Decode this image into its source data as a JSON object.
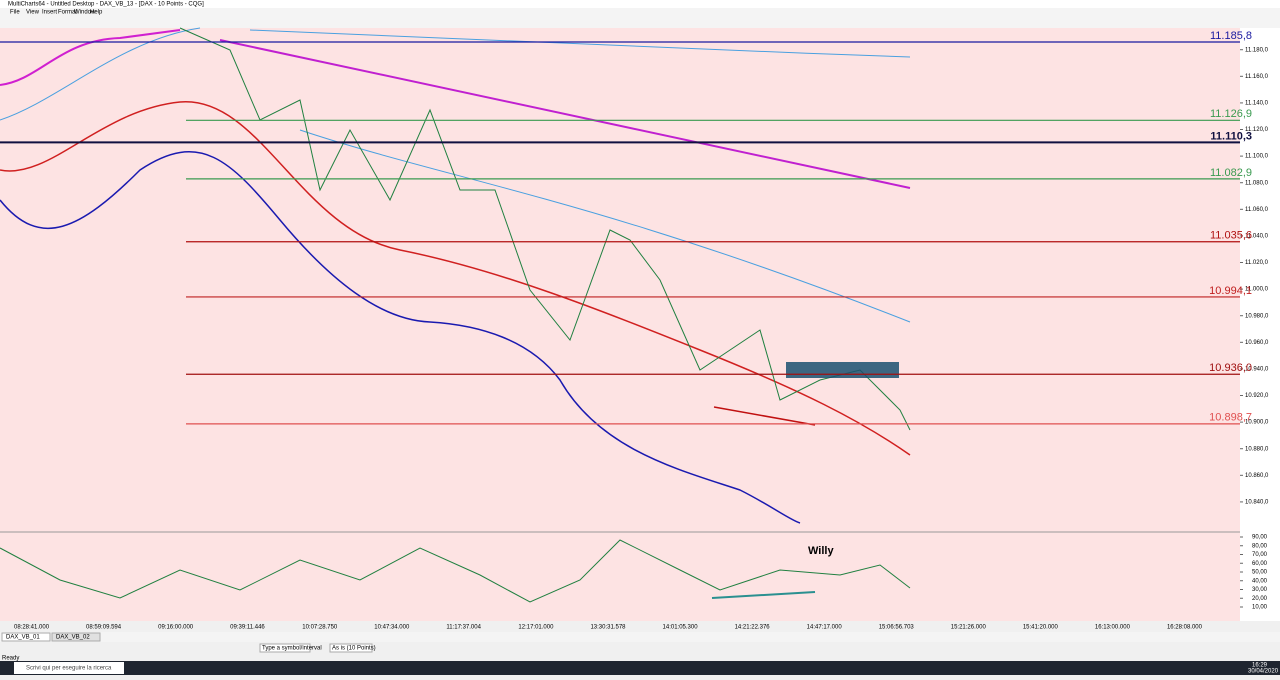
{
  "window": {
    "title": "MultiCharts64 - Untitled Desktop - DAX_VB_13 - [DAX - 10 Points - CQG]",
    "menu": [
      "File",
      "View",
      "Insert",
      "Format",
      "Window",
      "Help"
    ]
  },
  "chart": {
    "annotation": "Willy",
    "price_levels": [
      {
        "value": 11185.8,
        "label": "11.185,8",
        "color": "#1a1aa0"
      },
      {
        "value": 11126.9,
        "label": "11.126,9",
        "color": "#3a9a50"
      },
      {
        "value": 11110.3,
        "label": "11.110,3",
        "color": "#101040"
      },
      {
        "value": 11082.9,
        "label": "11.082,9",
        "color": "#3a9a50"
      },
      {
        "value": 11035.6,
        "label": "11.035,6",
        "color": "#b01010"
      },
      {
        "value": 10994.1,
        "label": "10.994,1",
        "color": "#c02020"
      },
      {
        "value": 10936.0,
        "label": "10.936,0",
        "color": "#a01010"
      },
      {
        "value": 10898.7,
        "label": "10.898,7",
        "color": "#e05050"
      }
    ],
    "price_ticks": [
      {
        "value": 11180,
        "label": "11.180,0"
      },
      {
        "value": 11160,
        "label": "11.160,0"
      },
      {
        "value": 11140,
        "label": "11.140,0"
      },
      {
        "value": 11120,
        "label": "11.120,0"
      },
      {
        "value": 11100,
        "label": "11.100,0"
      },
      {
        "value": 11080,
        "label": "11.080,0"
      },
      {
        "value": 11060,
        "label": "11.060,0"
      },
      {
        "value": 11040,
        "label": "11.040,0"
      },
      {
        "value": 11020,
        "label": "11.020,0"
      },
      {
        "value": 11000,
        "label": "11.000,0"
      },
      {
        "value": 10980,
        "label": "10.980,0"
      },
      {
        "value": 10960,
        "label": "10.960,0"
      },
      {
        "value": 10940,
        "label": "10.940,0"
      },
      {
        "value": 10920,
        "label": "10.920,0"
      },
      {
        "value": 10900,
        "label": "10.900,0"
      },
      {
        "value": 10880,
        "label": "10.880,0"
      },
      {
        "value": 10860,
        "label": "10.860,0"
      },
      {
        "value": 10840,
        "label": "10.840,0"
      }
    ],
    "osc_ticks": [
      {
        "value": 90,
        "label": "90,00"
      },
      {
        "value": 80,
        "label": "80,00"
      },
      {
        "value": 70,
        "label": "70,00"
      },
      {
        "value": 60,
        "label": "60,00"
      },
      {
        "value": 50,
        "label": "50,00"
      },
      {
        "value": 40,
        "label": "40,00"
      },
      {
        "value": 30,
        "label": "30,00"
      },
      {
        "value": 20,
        "label": "20,00"
      },
      {
        "value": 10,
        "label": "10,00"
      }
    ],
    "time_labels": [
      "08:28:41.000",
      "08:59:09.594",
      "09:16:00.000",
      "09:39:11.446",
      "10:07:28.750",
      "10:47:34.000",
      "11:17:37.004",
      "12:17:01.000",
      "13:30:31.578",
      "14:01:05.300",
      "14:21:22.376",
      "14:47:17.000",
      "15:06:56.703",
      "15:21:26.000",
      "15:41:20.000",
      "16:13:00.000",
      "16:28:08.000"
    ]
  },
  "tabs": [
    "DAX_VB_01",
    "DAX_VB_02"
  ],
  "toolbar": {
    "symbol": "Type a symbol/interval",
    "resolution": "As is (10 Points)"
  },
  "status": "Ready",
  "taskbar": {
    "search": "Scrivi qui per eseguire la ricerca",
    "time": "16:29",
    "date": "30/04/2020"
  }
}
